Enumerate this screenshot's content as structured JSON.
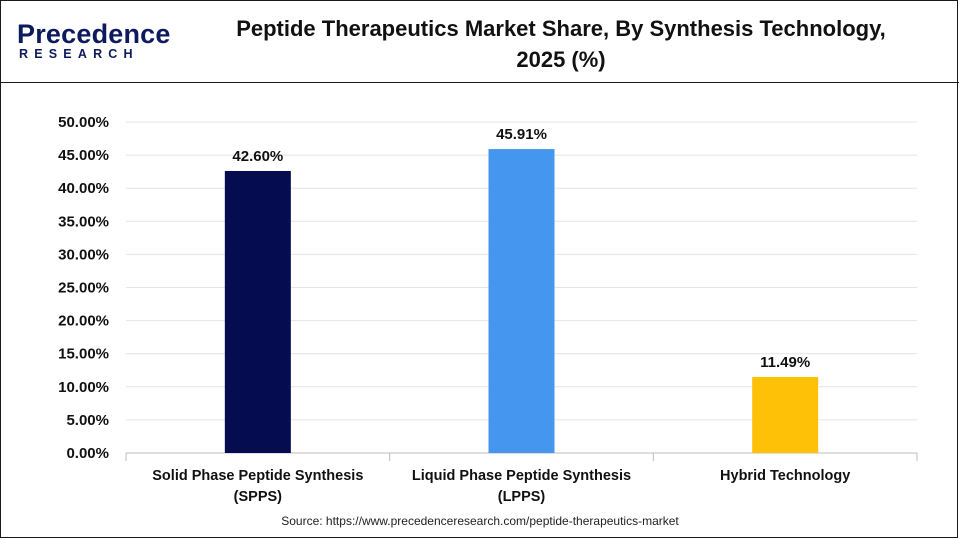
{
  "header": {
    "title_line1": "Peptide Therapeutics Market Share, By Synthesis Technology,",
    "title_line2": "2025 (%)",
    "logo_name": "Precedence",
    "logo_sub": "RESEARCH"
  },
  "source": "Source: https://www.precedenceresearch.com/peptide-therapeutics-market",
  "chart_data": {
    "type": "bar",
    "title": "Peptide Therapeutics Market Share, By Synthesis Technology, 2025 (%)",
    "categories": [
      [
        "Solid Phase Peptide Synthesis",
        "(SPPS)"
      ],
      [
        "Liquid Phase Peptide Synthesis",
        "(LPPS)"
      ],
      [
        "Hybrid Technology"
      ]
    ],
    "values": [
      42.6,
      45.91,
      11.49
    ],
    "value_labels": [
      "42.60%",
      "45.91%",
      "11.49%"
    ],
    "colors": [
      "#050c4f",
      "#4496ee",
      "#ffc107"
    ],
    "ylim": [
      0,
      50
    ],
    "yticks": [
      "0.00%",
      "5.00%",
      "10.00%",
      "15.00%",
      "20.00%",
      "25.00%",
      "30.00%",
      "35.00%",
      "40.00%",
      "45.00%",
      "50.00%"
    ],
    "xlabel": "",
    "ylabel": "",
    "grid": true,
    "legend": "none"
  }
}
